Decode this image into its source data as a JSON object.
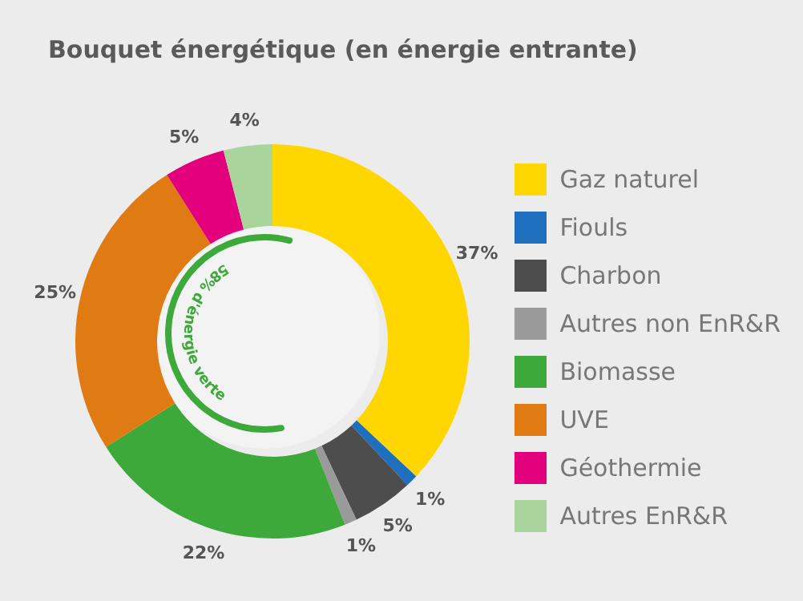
{
  "chart_data": {
    "type": "donut",
    "title": "Bouquet énergétique (en énergie entrante)",
    "categories": [
      "Gaz naturel",
      "Fiouls",
      "Charbon",
      "Autres non EnR&R",
      "Biomasse",
      "UVE",
      "Géothermie",
      "Autres EnR&R"
    ],
    "values": [
      37,
      1,
      5,
      1,
      22,
      25,
      5,
      4
    ],
    "colors": [
      "#ffd600",
      "#1f6fbf",
      "#4d4d4d",
      "#9a9a9a",
      "#3da93a",
      "#e07a12",
      "#e3007d",
      "#a9d59c"
    ],
    "value_labels": [
      "37%",
      "1%",
      "5%",
      "1%",
      "22%",
      "25%",
      "5%",
      "4%"
    ],
    "legend": "right",
    "annotations": [
      "58% d'énergie verte"
    ]
  }
}
